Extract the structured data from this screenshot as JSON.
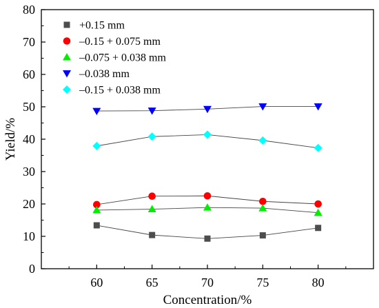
{
  "chart_data": {
    "type": "line",
    "title": "",
    "xlabel": "Concentration/%",
    "ylabel": "Yield/%",
    "xlim": [
      55,
      85
    ],
    "ylim": [
      0,
      80
    ],
    "x": [
      60,
      65,
      70,
      75,
      80
    ],
    "x_ticks": [
      60,
      65,
      70,
      75,
      80
    ],
    "y_ticks": [
      0,
      10,
      20,
      30,
      40,
      50,
      60,
      70,
      80
    ],
    "grid": false,
    "legend_position": "top-left",
    "series": [
      {
        "name": "+0.15 mm",
        "marker": "square",
        "color": "#4d4d4d",
        "values": [
          13.4,
          10.4,
          9.3,
          10.3,
          12.6
        ]
      },
      {
        "name": "–0.15 + 0.075 mm",
        "marker": "circle",
        "color": "#ff0000",
        "values": [
          19.8,
          22.4,
          22.5,
          20.8,
          20.0
        ]
      },
      {
        "name": "–0.075 + 0.038 mm",
        "marker": "triangle-up",
        "color": "#00ee00",
        "values": [
          18.1,
          18.4,
          18.9,
          18.7,
          17.3
        ]
      },
      {
        "name": "–0.038 mm",
        "marker": "triangle-down",
        "color": "#0000ff",
        "values": [
          48.7,
          48.8,
          49.3,
          50.1,
          50.1
        ]
      },
      {
        "name": "–0.15 + 0.038 mm",
        "marker": "diamond",
        "color": "#00ffff",
        "values": [
          37.9,
          40.8,
          41.4,
          39.6,
          37.3
        ]
      }
    ]
  }
}
